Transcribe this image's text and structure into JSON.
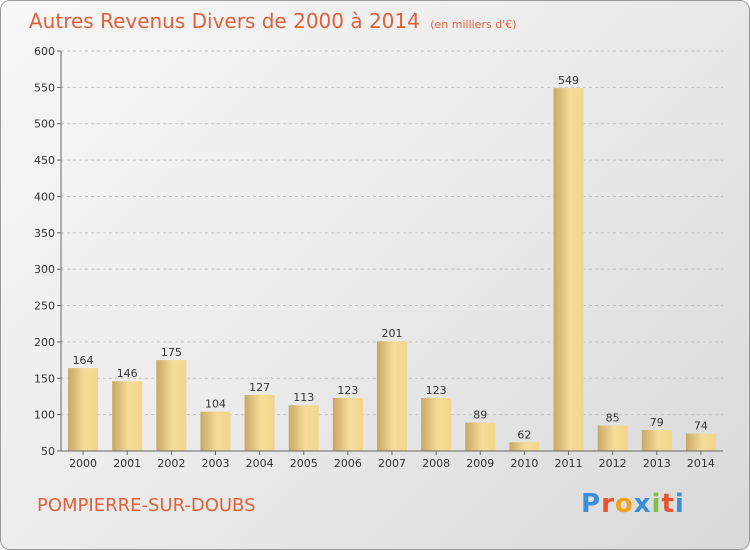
{
  "title_main": "Autres Revenus Divers de 2000 à 2014",
  "title_unit": "(en milliers d'€)",
  "commune": "POMPIERRE-SUR-DOUBS",
  "logo": {
    "letters": [
      "P",
      "r",
      "o",
      "x",
      "i",
      "t",
      "i"
    ],
    "colors": [
      "#3a8fd8",
      "#e8552c",
      "#f2a21c",
      "#3a8fd8",
      "#7cc243",
      "#e8552c",
      "#3a8fd8"
    ]
  },
  "colors": {
    "accent": "#e0603a",
    "bar_light": "#f5dc97",
    "bar_dark": "#c9a866"
  },
  "chart_data": {
    "type": "bar",
    "title": "Autres Revenus Divers de 2000 à 2014",
    "subtitle": "(en milliers d'€)",
    "categories": [
      "2000",
      "2001",
      "2002",
      "2003",
      "2004",
      "2005",
      "2006",
      "2007",
      "2008",
      "2009",
      "2010",
      "2011",
      "2012",
      "2013",
      "2014"
    ],
    "values": [
      164,
      146,
      175,
      104,
      127,
      113,
      123,
      201,
      123,
      89,
      62,
      549,
      85,
      79,
      74
    ],
    "ylim": [
      50,
      600
    ],
    "yticks": [
      50,
      100,
      150,
      200,
      250,
      300,
      350,
      400,
      450,
      500,
      550,
      600
    ],
    "grid": true
  }
}
